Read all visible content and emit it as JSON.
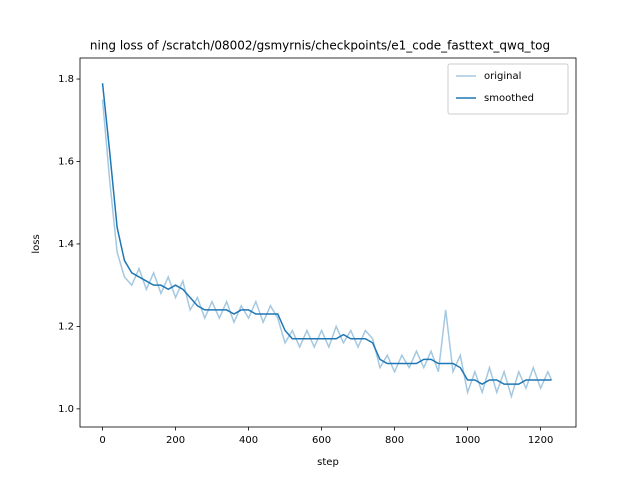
{
  "chart_data": {
    "type": "line",
    "title": "ning loss of /scratch/08002/gsmyrnis/checkpoints/e1_code_fasttext_qwq_tog",
    "xlabel": "step",
    "ylabel": "loss",
    "x": [
      0,
      20,
      40,
      60,
      80,
      100,
      120,
      140,
      160,
      180,
      200,
      220,
      240,
      260,
      280,
      300,
      320,
      340,
      360,
      380,
      400,
      420,
      440,
      460,
      480,
      500,
      520,
      540,
      560,
      580,
      600,
      620,
      640,
      660,
      680,
      700,
      720,
      740,
      760,
      780,
      800,
      820,
      840,
      860,
      880,
      900,
      920,
      940,
      960,
      980,
      1000,
      1020,
      1040,
      1060,
      1080,
      1100,
      1120,
      1140,
      1160,
      1180,
      1200,
      1220,
      1230
    ],
    "series": [
      {
        "name": "original",
        "color": "#a5c8e1",
        "values": [
          1.75,
          1.55,
          1.38,
          1.32,
          1.3,
          1.34,
          1.29,
          1.33,
          1.28,
          1.32,
          1.27,
          1.31,
          1.24,
          1.27,
          1.22,
          1.26,
          1.22,
          1.26,
          1.21,
          1.25,
          1.22,
          1.26,
          1.21,
          1.25,
          1.22,
          1.16,
          1.19,
          1.15,
          1.19,
          1.15,
          1.19,
          1.15,
          1.2,
          1.16,
          1.19,
          1.15,
          1.19,
          1.17,
          1.1,
          1.13,
          1.09,
          1.13,
          1.1,
          1.14,
          1.1,
          1.14,
          1.09,
          1.24,
          1.09,
          1.13,
          1.04,
          1.09,
          1.04,
          1.1,
          1.04,
          1.09,
          1.03,
          1.09,
          1.05,
          1.1,
          1.05,
          1.09,
          1.07
        ]
      },
      {
        "name": "smoothed",
        "color": "#1f77b4",
        "values": [
          1.79,
          1.62,
          1.44,
          1.36,
          1.33,
          1.32,
          1.31,
          1.3,
          1.3,
          1.29,
          1.3,
          1.29,
          1.27,
          1.25,
          1.24,
          1.24,
          1.24,
          1.24,
          1.23,
          1.24,
          1.24,
          1.23,
          1.23,
          1.23,
          1.23,
          1.19,
          1.17,
          1.17,
          1.17,
          1.17,
          1.17,
          1.17,
          1.17,
          1.18,
          1.17,
          1.17,
          1.17,
          1.16,
          1.12,
          1.11,
          1.11,
          1.11,
          1.11,
          1.11,
          1.12,
          1.12,
          1.11,
          1.11,
          1.11,
          1.1,
          1.07,
          1.07,
          1.06,
          1.07,
          1.07,
          1.06,
          1.06,
          1.06,
          1.07,
          1.07,
          1.07,
          1.07,
          1.07
        ]
      }
    ],
    "xlim": [
      -61.7,
      1297
    ],
    "ylim": [
      0.956,
      1.851
    ],
    "xticks": [
      0,
      200,
      400,
      600,
      800,
      1000,
      1200
    ],
    "yticks": [
      {
        "value": 1,
        "label": "1.0"
      },
      1.2,
      1.4,
      1.6,
      1.8
    ],
    "legend": "upper right"
  }
}
